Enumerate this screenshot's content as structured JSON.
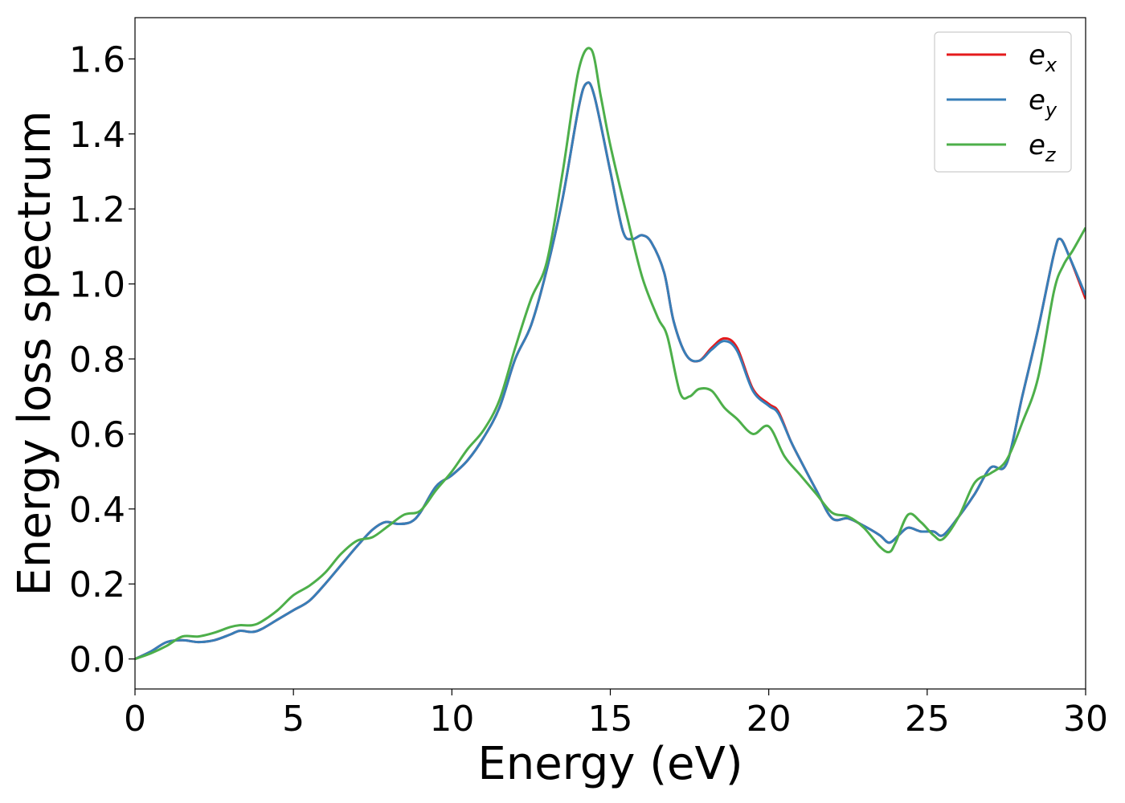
{
  "chart_data": {
    "type": "line",
    "title": "",
    "xlabel": "Energy (eV)",
    "ylabel": "Energy loss spectrum",
    "xlim": [
      0,
      30
    ],
    "ylim": [
      -0.08,
      1.71
    ],
    "xticks": [
      0,
      5,
      10,
      15,
      20,
      25,
      30
    ],
    "xtick_labels": [
      "0",
      "5",
      "10",
      "15",
      "20",
      "25",
      "30"
    ],
    "yticks": [
      0.0,
      0.2,
      0.4,
      0.6,
      0.8,
      1.0,
      1.2,
      1.4,
      1.6
    ],
    "ytick_labels": [
      "0.0",
      "0.2",
      "0.4",
      "0.6",
      "0.8",
      "1.0",
      "1.2",
      "1.4",
      "1.6"
    ],
    "grid": false,
    "legend_position": "top-right",
    "series": [
      {
        "name": "e",
        "subscript": "x",
        "color": "#e41a1c",
        "points": [
          [
            0,
            0.0
          ],
          [
            0.5,
            0.02
          ],
          [
            1.0,
            0.045
          ],
          [
            1.5,
            0.05
          ],
          [
            2.0,
            0.045
          ],
          [
            2.5,
            0.05
          ],
          [
            3.0,
            0.065
          ],
          [
            3.3,
            0.075
          ],
          [
            3.7,
            0.072
          ],
          [
            4.0,
            0.08
          ],
          [
            4.5,
            0.105
          ],
          [
            5.0,
            0.13
          ],
          [
            5.5,
            0.155
          ],
          [
            6.0,
            0.2
          ],
          [
            6.5,
            0.25
          ],
          [
            7.0,
            0.3
          ],
          [
            7.5,
            0.345
          ],
          [
            7.9,
            0.365
          ],
          [
            8.3,
            0.36
          ],
          [
            8.7,
            0.365
          ],
          [
            9.0,
            0.39
          ],
          [
            9.5,
            0.46
          ],
          [
            10.0,
            0.49
          ],
          [
            10.5,
            0.53
          ],
          [
            11.0,
            0.59
          ],
          [
            11.5,
            0.67
          ],
          [
            12.0,
            0.8
          ],
          [
            12.5,
            0.89
          ],
          [
            13.0,
            1.04
          ],
          [
            13.5,
            1.23
          ],
          [
            14.0,
            1.47
          ],
          [
            14.25,
            1.535
          ],
          [
            14.5,
            1.5
          ],
          [
            15.0,
            1.3
          ],
          [
            15.4,
            1.14
          ],
          [
            15.7,
            1.12
          ],
          [
            16.0,
            1.13
          ],
          [
            16.3,
            1.11
          ],
          [
            16.7,
            1.03
          ],
          [
            17.0,
            0.9
          ],
          [
            17.4,
            0.81
          ],
          [
            17.8,
            0.795
          ],
          [
            18.2,
            0.83
          ],
          [
            18.6,
            0.855
          ],
          [
            19.0,
            0.83
          ],
          [
            19.5,
            0.72
          ],
          [
            20.0,
            0.68
          ],
          [
            20.3,
            0.66
          ],
          [
            20.7,
            0.58
          ],
          [
            21.0,
            0.53
          ],
          [
            21.5,
            0.45
          ],
          [
            22.0,
            0.375
          ],
          [
            22.5,
            0.375
          ],
          [
            23.0,
            0.355
          ],
          [
            23.5,
            0.33
          ],
          [
            23.8,
            0.31
          ],
          [
            24.1,
            0.33
          ],
          [
            24.4,
            0.35
          ],
          [
            24.8,
            0.34
          ],
          [
            25.2,
            0.34
          ],
          [
            25.5,
            0.33
          ],
          [
            26.0,
            0.38
          ],
          [
            26.5,
            0.44
          ],
          [
            27.0,
            0.51
          ],
          [
            27.5,
            0.52
          ],
          [
            28.0,
            0.7
          ],
          [
            28.5,
            0.88
          ],
          [
            29.0,
            1.08
          ],
          [
            29.2,
            1.12
          ],
          [
            29.5,
            1.07
          ],
          [
            30.0,
            0.96
          ]
        ]
      },
      {
        "name": "e",
        "subscript": "y",
        "color": "#377eb8",
        "points": [
          [
            0,
            0.0
          ],
          [
            0.5,
            0.02
          ],
          [
            1.0,
            0.045
          ],
          [
            1.5,
            0.05
          ],
          [
            2.0,
            0.045
          ],
          [
            2.5,
            0.05
          ],
          [
            3.0,
            0.065
          ],
          [
            3.3,
            0.075
          ],
          [
            3.7,
            0.072
          ],
          [
            4.0,
            0.08
          ],
          [
            4.5,
            0.105
          ],
          [
            5.0,
            0.13
          ],
          [
            5.5,
            0.155
          ],
          [
            6.0,
            0.2
          ],
          [
            6.5,
            0.25
          ],
          [
            7.0,
            0.3
          ],
          [
            7.5,
            0.345
          ],
          [
            7.9,
            0.365
          ],
          [
            8.3,
            0.36
          ],
          [
            8.7,
            0.365
          ],
          [
            9.0,
            0.39
          ],
          [
            9.5,
            0.46
          ],
          [
            10.0,
            0.49
          ],
          [
            10.5,
            0.53
          ],
          [
            11.0,
            0.59
          ],
          [
            11.5,
            0.67
          ],
          [
            12.0,
            0.8
          ],
          [
            12.5,
            0.89
          ],
          [
            13.0,
            1.04
          ],
          [
            13.5,
            1.23
          ],
          [
            14.0,
            1.47
          ],
          [
            14.25,
            1.535
          ],
          [
            14.5,
            1.5
          ],
          [
            15.0,
            1.3
          ],
          [
            15.4,
            1.14
          ],
          [
            15.7,
            1.12
          ],
          [
            16.0,
            1.13
          ],
          [
            16.3,
            1.11
          ],
          [
            16.7,
            1.03
          ],
          [
            17.0,
            0.9
          ],
          [
            17.4,
            0.81
          ],
          [
            17.8,
            0.795
          ],
          [
            18.2,
            0.825
          ],
          [
            18.6,
            0.848
          ],
          [
            19.0,
            0.822
          ],
          [
            19.5,
            0.715
          ],
          [
            20.0,
            0.675
          ],
          [
            20.3,
            0.655
          ],
          [
            20.7,
            0.58
          ],
          [
            21.0,
            0.53
          ],
          [
            21.5,
            0.45
          ],
          [
            22.0,
            0.375
          ],
          [
            22.5,
            0.375
          ],
          [
            23.0,
            0.355
          ],
          [
            23.5,
            0.33
          ],
          [
            23.8,
            0.31
          ],
          [
            24.1,
            0.33
          ],
          [
            24.4,
            0.35
          ],
          [
            24.8,
            0.34
          ],
          [
            25.2,
            0.34
          ],
          [
            25.5,
            0.33
          ],
          [
            26.0,
            0.38
          ],
          [
            26.5,
            0.44
          ],
          [
            27.0,
            0.51
          ],
          [
            27.5,
            0.52
          ],
          [
            28.0,
            0.7
          ],
          [
            28.5,
            0.88
          ],
          [
            29.0,
            1.08
          ],
          [
            29.2,
            1.12
          ],
          [
            29.5,
            1.07
          ],
          [
            30.0,
            0.97
          ]
        ]
      },
      {
        "name": "e",
        "subscript": "z",
        "color": "#4daf4a",
        "points": [
          [
            0,
            0.0
          ],
          [
            0.5,
            0.015
          ],
          [
            1.0,
            0.035
          ],
          [
            1.5,
            0.06
          ],
          [
            2.0,
            0.06
          ],
          [
            2.5,
            0.07
          ],
          [
            3.0,
            0.085
          ],
          [
            3.3,
            0.09
          ],
          [
            3.7,
            0.09
          ],
          [
            4.0,
            0.1
          ],
          [
            4.5,
            0.13
          ],
          [
            5.0,
            0.17
          ],
          [
            5.5,
            0.195
          ],
          [
            6.0,
            0.23
          ],
          [
            6.5,
            0.28
          ],
          [
            7.0,
            0.315
          ],
          [
            7.5,
            0.325
          ],
          [
            8.0,
            0.355
          ],
          [
            8.5,
            0.385
          ],
          [
            9.0,
            0.395
          ],
          [
            9.5,
            0.45
          ],
          [
            10.0,
            0.5
          ],
          [
            10.5,
            0.56
          ],
          [
            11.0,
            0.61
          ],
          [
            11.5,
            0.69
          ],
          [
            12.0,
            0.83
          ],
          [
            12.5,
            0.96
          ],
          [
            13.0,
            1.06
          ],
          [
            13.5,
            1.3
          ],
          [
            14.0,
            1.57
          ],
          [
            14.4,
            1.625
          ],
          [
            14.7,
            1.5
          ],
          [
            15.0,
            1.37
          ],
          [
            15.5,
            1.19
          ],
          [
            16.0,
            1.02
          ],
          [
            16.5,
            0.91
          ],
          [
            16.8,
            0.86
          ],
          [
            17.2,
            0.71
          ],
          [
            17.5,
            0.7
          ],
          [
            17.8,
            0.72
          ],
          [
            18.2,
            0.715
          ],
          [
            18.6,
            0.67
          ],
          [
            19.0,
            0.64
          ],
          [
            19.5,
            0.6
          ],
          [
            20.0,
            0.62
          ],
          [
            20.5,
            0.54
          ],
          [
            21.0,
            0.49
          ],
          [
            21.5,
            0.44
          ],
          [
            22.0,
            0.39
          ],
          [
            22.5,
            0.38
          ],
          [
            23.0,
            0.35
          ],
          [
            23.5,
            0.3
          ],
          [
            23.8,
            0.285
          ],
          [
            24.0,
            0.31
          ],
          [
            24.4,
            0.385
          ],
          [
            24.8,
            0.365
          ],
          [
            25.2,
            0.33
          ],
          [
            25.5,
            0.32
          ],
          [
            26.0,
            0.38
          ],
          [
            26.5,
            0.47
          ],
          [
            27.0,
            0.495
          ],
          [
            27.5,
            0.53
          ],
          [
            28.0,
            0.63
          ],
          [
            28.5,
            0.75
          ],
          [
            29.0,
            0.98
          ],
          [
            29.3,
            1.05
          ],
          [
            29.6,
            1.09
          ],
          [
            30.0,
            1.15
          ]
        ]
      }
    ]
  }
}
